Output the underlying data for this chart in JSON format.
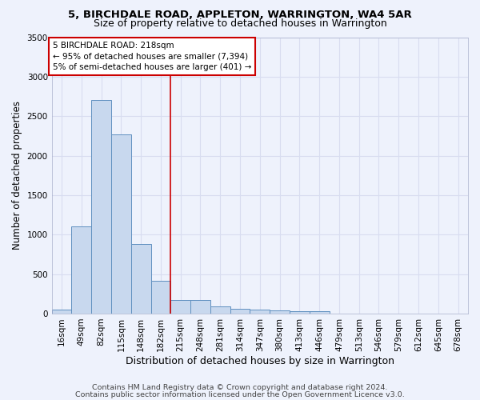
{
  "title1": "5, BIRCHDALE ROAD, APPLETON, WARRINGTON, WA4 5AR",
  "title2": "Size of property relative to detached houses in Warrington",
  "xlabel": "Distribution of detached houses by size in Warrington",
  "ylabel": "Number of detached properties",
  "bar_color": "#c8d8ee",
  "bar_edge_color": "#6090c0",
  "categories": [
    "16sqm",
    "49sqm",
    "82sqm",
    "115sqm",
    "148sqm",
    "182sqm",
    "215sqm",
    "248sqm",
    "281sqm",
    "314sqm",
    "347sqm",
    "380sqm",
    "413sqm",
    "446sqm",
    "479sqm",
    "513sqm",
    "546sqm",
    "579sqm",
    "612sqm",
    "645sqm",
    "678sqm"
  ],
  "values": [
    50,
    1100,
    2700,
    2270,
    880,
    420,
    170,
    170,
    95,
    60,
    50,
    40,
    30,
    25,
    0,
    0,
    0,
    0,
    0,
    0,
    0
  ],
  "ylim": [
    0,
    3500
  ],
  "yticks": [
    0,
    500,
    1000,
    1500,
    2000,
    2500,
    3000,
    3500
  ],
  "vline_x": 6.0,
  "vline_color": "#cc0000",
  "annotation_box_text": "5 BIRCHDALE ROAD: 218sqm\n← 95% of detached houses are smaller (7,394)\n5% of semi-detached houses are larger (401) →",
  "footer1": "Contains HM Land Registry data © Crown copyright and database right 2024.",
  "footer2": "Contains public sector information licensed under the Open Government Licence v3.0.",
  "background_color": "#eef2fc",
  "grid_color": "#d8ddf0",
  "title1_fontsize": 9.5,
  "title2_fontsize": 9,
  "xlabel_fontsize": 9,
  "ylabel_fontsize": 8.5,
  "tick_fontsize": 7.5,
  "footer_fontsize": 6.8,
  "annotation_fontsize": 7.5
}
